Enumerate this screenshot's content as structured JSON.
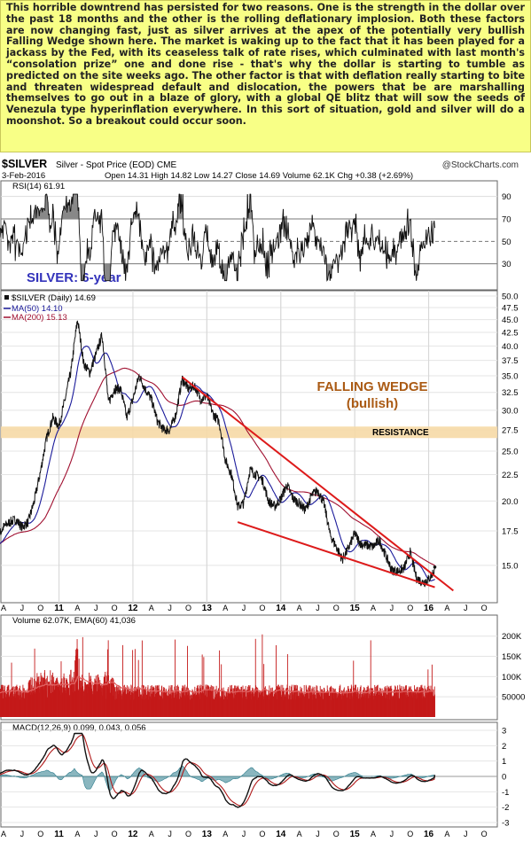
{
  "commentary": "This horrible downtrend has persisted for two reasons. One is the strength in the dollar over the past 18 months and the other is the rolling deflationary implosion. Both these factors are now changing fast, just as silver arrives at the apex of the potentially very bullish Falling Wedge shown here. The market is waking up to the fact that it has been played for a jackass by the Fed, with its ceaseless talk of rate rises, which culminated with last month's “consolation prize” one and done rise - that's why the dollar is starting to tumble as predicted on the site weeks ago. The other factor is that with deflation really starting to bite and threaten widespread default and dislocation, the powers that be are marshalling themselves to go out in a blaze of glory, with a global QE blitz that will sow the seeds of Venezula type hyperinflation everywhere. In this sort of situation, gold and silver will do a moonshot. So a breakout could occur soon.",
  "header": {
    "symbol": "$SILVER",
    "description": "Silver - Spot Price (EOD) CME",
    "brand": "@StockCharts.com",
    "date": "3-Feb-2016",
    "quote": "Open 14.31  High 14.82  Low 14.27  Close 14.69  Volume 62.1K  Chg +0.38 (+2.69%)"
  },
  "colors": {
    "price": "#111111",
    "ma50": "#1a1a9a",
    "ma200": "#a01030",
    "wedge": "#dd1a1a",
    "resistance_band": "#f6d9a6",
    "volume_bar": "#c41a1a",
    "ema60": "#e06060",
    "macd": "#111111",
    "macd_signal": "#b11a1a",
    "macd_histogram": "#2a7a8a",
    "rsi": "#111111",
    "rsi_fill": "#888888",
    "annotation": "#aa5a14",
    "title_label": "#3333bb"
  },
  "annotations": {
    "chart_title": "SILVER: 6-year",
    "wedge_label_1": "FALLING WEDGE",
    "wedge_label_2": "(bullish)",
    "resistance_label": "RESISTANCE"
  },
  "chart_data": [
    {
      "type": "line",
      "panel": "RSI",
      "legend": "RSI(14) 61.91",
      "ylim": [
        10,
        100
      ],
      "yticks": [
        90,
        70,
        50,
        30
      ],
      "reference_lines": [
        70,
        50,
        30
      ],
      "last_value": 61.91
    },
    {
      "type": "line",
      "panel": "price",
      "series": [
        {
          "name": "$SILVER (Daily) 14.69",
          "x": [
            "2010-01",
            "2010-02",
            "2010-03",
            "2010-04",
            "2010-05",
            "2010-06",
            "2010-07",
            "2010-08",
            "2010-09",
            "2010-10",
            "2010-11",
            "2010-12",
            "2011-01",
            "2011-02",
            "2011-03",
            "2011-04",
            "2011-05",
            "2011-06",
            "2011-07",
            "2011-08",
            "2011-09",
            "2011-10",
            "2011-11",
            "2011-12",
            "2012-01",
            "2012-02",
            "2012-03",
            "2012-04",
            "2012-05",
            "2012-06",
            "2012-07",
            "2012-08",
            "2012-09",
            "2012-10",
            "2012-11",
            "2012-12",
            "2013-01",
            "2013-02",
            "2013-03",
            "2013-04",
            "2013-05",
            "2013-06",
            "2013-07",
            "2013-08",
            "2013-09",
            "2013-10",
            "2013-11",
            "2013-12",
            "2014-01",
            "2014-02",
            "2014-03",
            "2014-04",
            "2014-05",
            "2014-06",
            "2014-07",
            "2014-08",
            "2014-09",
            "2014-10",
            "2014-11",
            "2014-12",
            "2015-01",
            "2015-02",
            "2015-03",
            "2015-04",
            "2015-05",
            "2015-06",
            "2015-07",
            "2015-08",
            "2015-09",
            "2015-10",
            "2015-11",
            "2015-12",
            "2016-01",
            "2016-02"
          ],
          "y": [
            16.5,
            16.0,
            17.0,
            17.8,
            18.2,
            18.4,
            17.8,
            18.2,
            20.0,
            22.8,
            26.5,
            29.0,
            28.0,
            31.5,
            36.0,
            45.0,
            37.0,
            35.5,
            38.5,
            42.0,
            31.0,
            33.0,
            33.0,
            29.0,
            31.5,
            35.0,
            33.0,
            31.5,
            28.5,
            27.5,
            27.5,
            29.5,
            34.5,
            33.0,
            33.5,
            31.5,
            32.0,
            29.5,
            28.5,
            24.0,
            22.5,
            19.5,
            19.8,
            23.0,
            22.5,
            22.0,
            20.0,
            19.5,
            20.2,
            21.5,
            20.2,
            19.8,
            19.2,
            20.5,
            21.0,
            19.8,
            17.2,
            16.3,
            15.4,
            16.2,
            17.3,
            16.5,
            16.4,
            16.3,
            16.8,
            15.7,
            14.7,
            14.6,
            14.8,
            15.9,
            14.2,
            13.9,
            14.1,
            14.69
          ]
        },
        {
          "name": "MA(50) 14.10",
          "last_value": 14.1
        },
        {
          "name": "MA(200) 15.13",
          "last_value": 15.13
        }
      ],
      "ylim": [
        13,
        50
      ],
      "y_log_scale": true,
      "yticks": [
        50.0,
        47.5,
        45.0,
        42.5,
        40.0,
        37.5,
        35.0,
        32.5,
        30.0,
        27.5,
        25.0,
        22.5,
        20.0,
        17.5,
        15.0
      ],
      "xticks": [
        "A",
        "J",
        "O",
        "11",
        "A",
        "J",
        "O",
        "12",
        "A",
        "J",
        "O",
        "13",
        "A",
        "J",
        "O",
        "14",
        "A",
        "J",
        "O",
        "15",
        "A",
        "J",
        "O",
        "16",
        "A",
        "J",
        "O"
      ],
      "resistance_zone": [
        26.5,
        27.9
      ],
      "wedge_upper": {
        "from": {
          "x": "2012-09",
          "y": 34.8
        },
        "to": {
          "x": "2016-05",
          "y": 13.4
        }
      },
      "wedge_lower": {
        "from": {
          "x": "2013-06",
          "y": 18.2
        },
        "to": {
          "x": "2016-02",
          "y": 13.6
        }
      }
    },
    {
      "type": "bar",
      "panel": "volume",
      "legend": "Volume 62.07K, EMA(60) 41,036",
      "last_value": 62070,
      "ema60": 41036,
      "yticks": [
        "200K",
        "150K",
        "100K",
        "50000"
      ]
    },
    {
      "type": "line",
      "panel": "MACD",
      "legend": "MACD(12,26,9) 0.099, 0.043, 0.056",
      "macd": 0.099,
      "signal": 0.043,
      "histogram": 0.056,
      "ylim": [
        -3,
        3
      ],
      "yticks": [
        "3",
        "2",
        "1",
        "0",
        "-1",
        "-2",
        "-3"
      ],
      "xticks": [
        "A",
        "J",
        "O",
        "11",
        "A",
        "J",
        "O",
        "12",
        "A",
        "J",
        "O",
        "13",
        "A",
        "J",
        "O",
        "14",
        "A",
        "J",
        "O",
        "15",
        "A",
        "J",
        "O",
        "16",
        "A",
        "J",
        "O"
      ]
    }
  ]
}
